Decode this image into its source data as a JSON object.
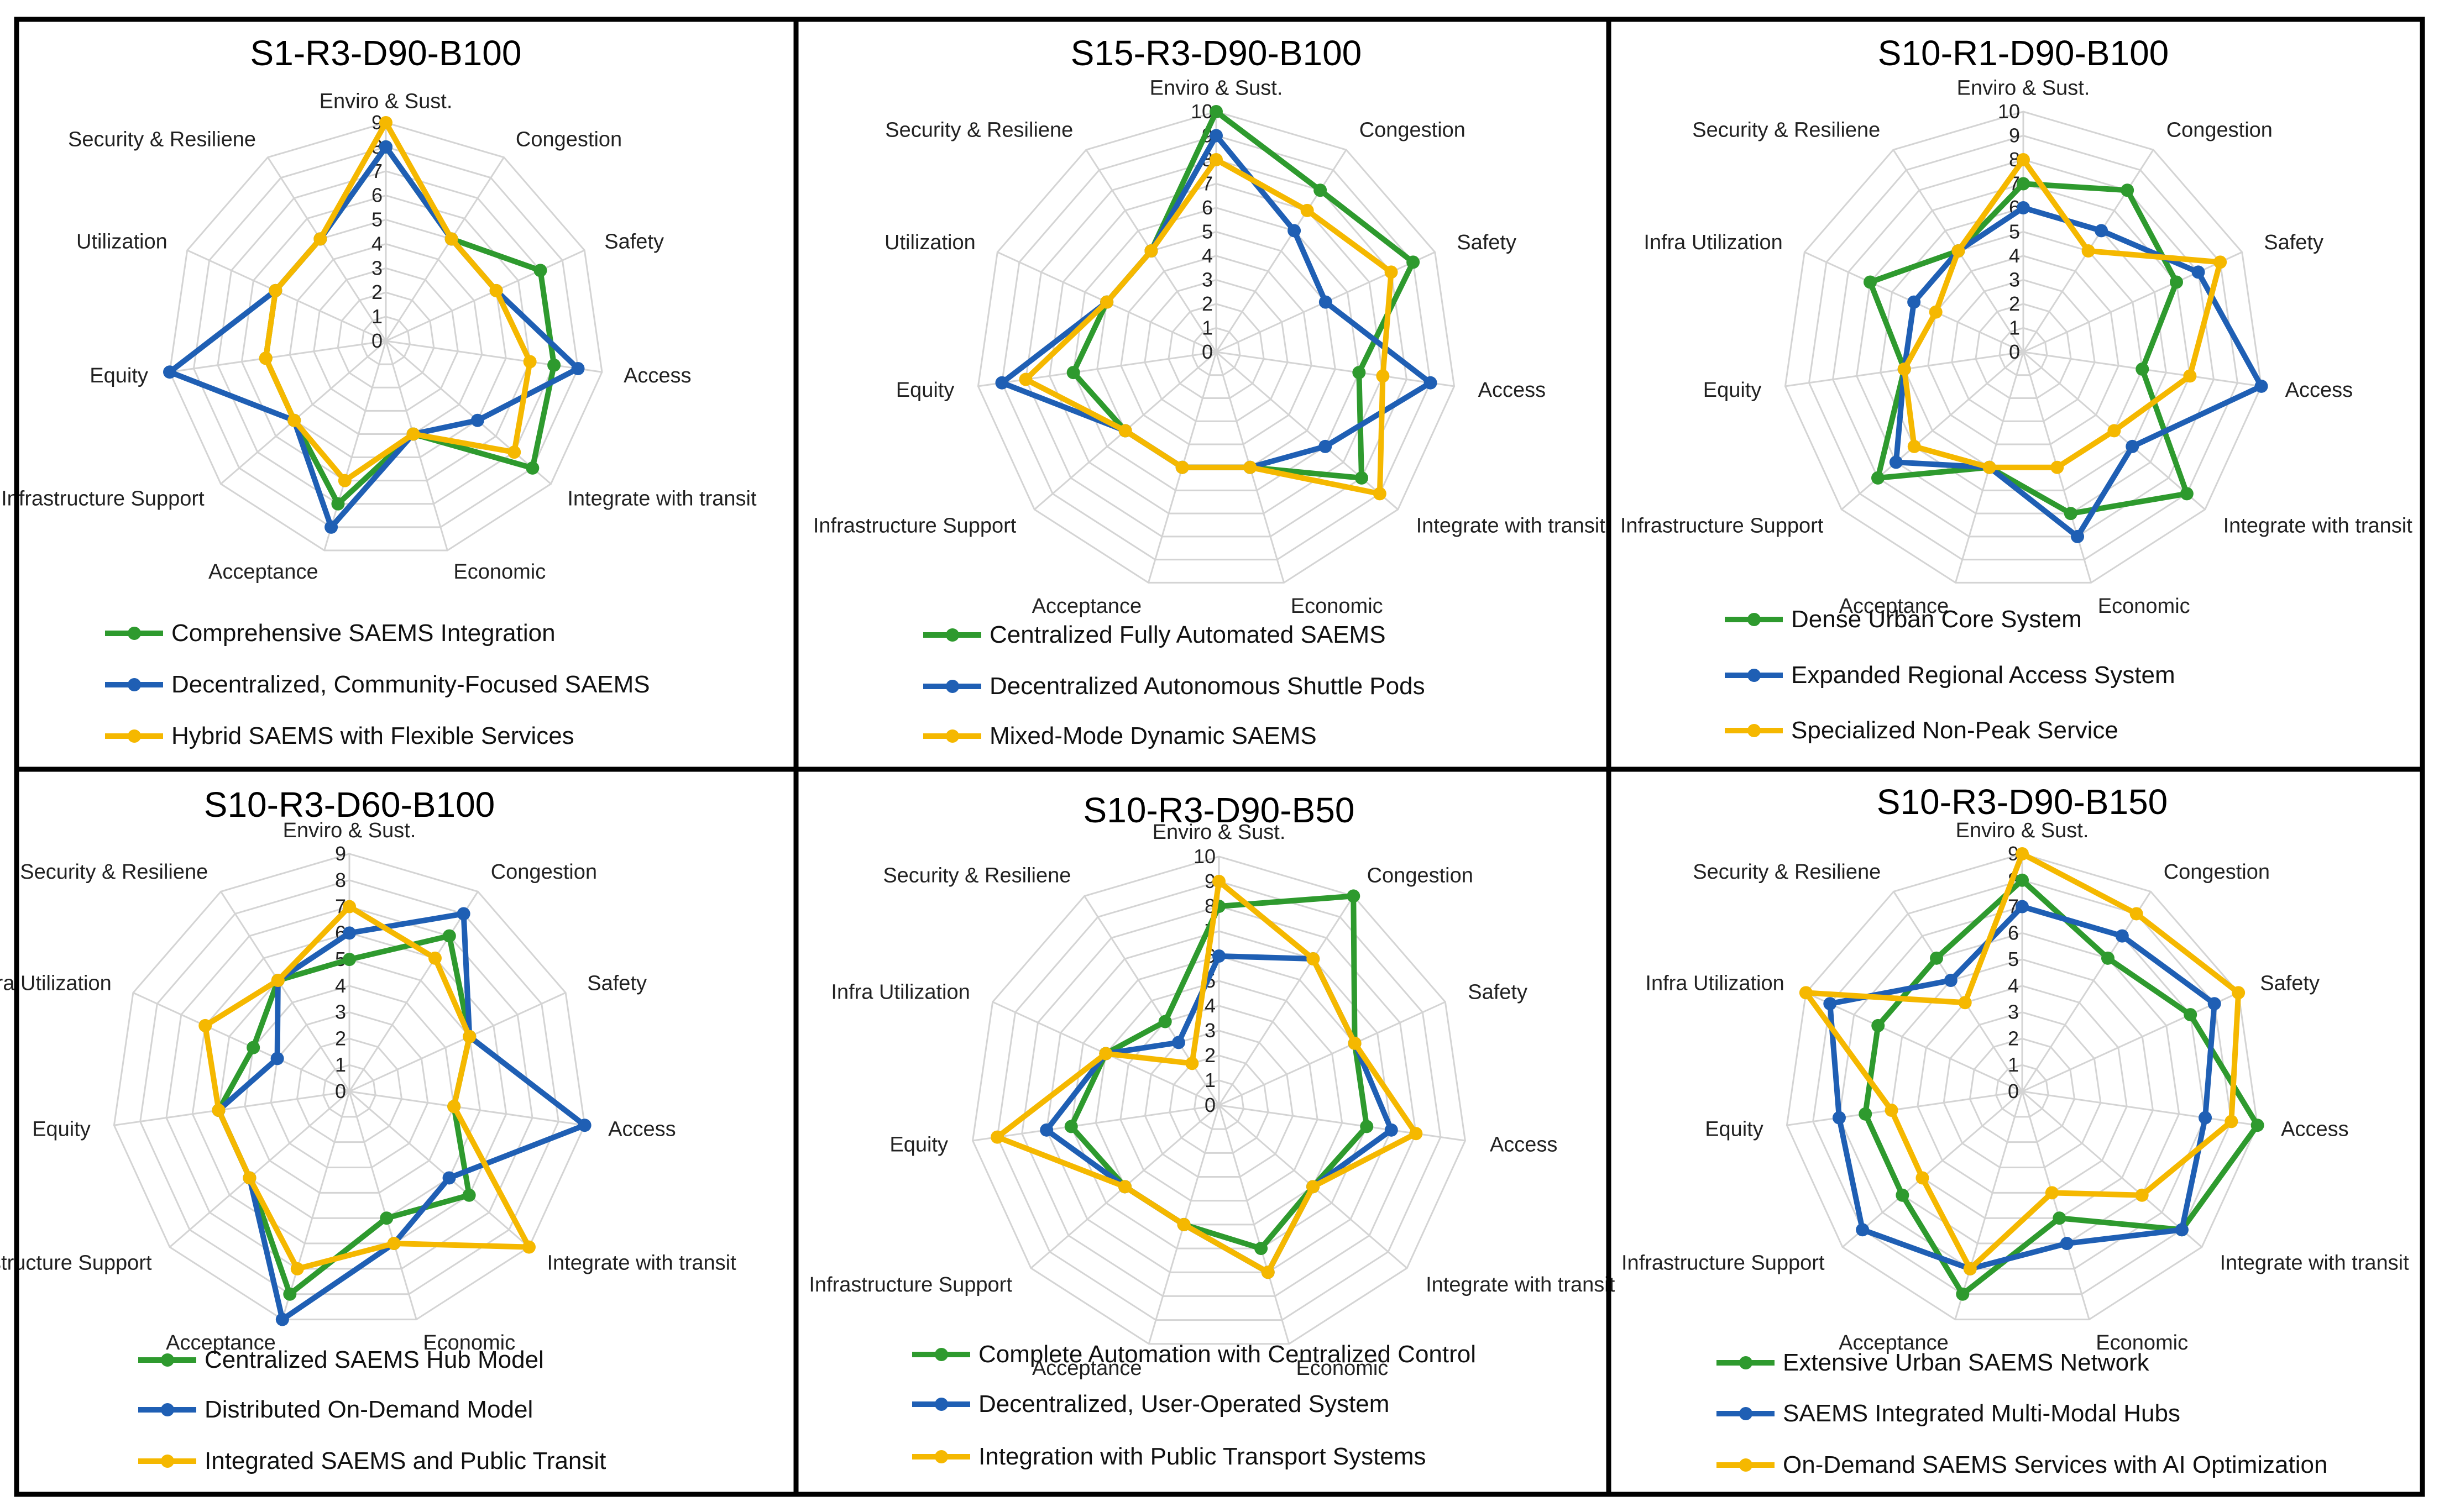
{
  "colors": {
    "green": "#2e9a2e",
    "blue": "#1f5fb4",
    "yellow": "#f5b800"
  },
  "chart_data": [
    {
      "type": "radar",
      "title": "S1-R3-D90-B100",
      "axes": [
        "Enviro & Sust.",
        "Congestion",
        "Safety",
        "Access",
        "Integrate with transit",
        "Economic",
        "Acceptance",
        "Infrastructure Support",
        "Equity",
        "Utilization",
        "Security & Resiliene"
      ],
      "rmax": 9,
      "ticks": [
        "0",
        "1",
        "2",
        "3",
        "4",
        "5",
        "6",
        "7",
        "8",
        "9"
      ],
      "series": [
        {
          "name": "Comprehensive SAEMS Integration",
          "color": "green",
          "values": [
            8,
            5,
            7,
            7,
            8,
            4,
            7,
            5,
            5,
            5,
            5
          ]
        },
        {
          "name": "Decentralized, Community-Focused SAEMS",
          "color": "blue",
          "values": [
            8,
            5,
            5,
            8,
            5,
            4,
            8,
            5,
            9,
            5,
            5
          ]
        },
        {
          "name": "Hybrid SAEMS with Flexible Services",
          "color": "yellow",
          "values": [
            9,
            5,
            5,
            6,
            7,
            4,
            6,
            5,
            5,
            5,
            5
          ]
        }
      ]
    },
    {
      "type": "radar",
      "title": "S15-R3-D90-B100",
      "axes": [
        "Enviro & Sust.",
        "Congestion",
        "Safety",
        "Access",
        "Integrate with transit",
        "Economic",
        "Acceptance",
        "Infrastructure Support",
        "Equity",
        "Utilization",
        "Security & Resiliene"
      ],
      "rmax": 10,
      "ticks": [
        "0",
        "1",
        "2",
        "3",
        "4",
        "5",
        "6",
        "7",
        "8",
        "9",
        "10"
      ],
      "series": [
        {
          "name": "Centralized Fully Automated SAEMS",
          "color": "green",
          "values": [
            10,
            8,
            9,
            6,
            8,
            5,
            5,
            5,
            6,
            5,
            5
          ]
        },
        {
          "name": "Decentralized Autonomous Shuttle Pods",
          "color": "blue",
          "values": [
            9,
            6,
            5,
            9,
            6,
            5,
            5,
            5,
            9,
            5,
            5
          ]
        },
        {
          "name": "Mixed-Mode Dynamic SAEMS",
          "color": "yellow",
          "values": [
            8,
            7,
            8,
            7,
            9,
            5,
            5,
            5,
            8,
            5,
            5
          ]
        }
      ]
    },
    {
      "type": "radar",
      "title": "S10-R1-D90-B100",
      "axes": [
        "Enviro & Sust.",
        "Congestion",
        "Safety",
        "Access",
        "Integrate with transit",
        "Economic",
        "Acceptance",
        "Infrastructure Support",
        "Equity",
        "Infra Utilization",
        "Security & Resiliene"
      ],
      "rmax": 10,
      "ticks": [
        "0",
        "1",
        "2",
        "3",
        "4",
        "5",
        "6",
        "7",
        "8",
        "9",
        "10"
      ],
      "series": [
        {
          "name": "Dense Urban Core System",
          "color": "green",
          "values": [
            7,
            8,
            7,
            5,
            9,
            7,
            5,
            8,
            5,
            7,
            5
          ]
        },
        {
          "name": "Expanded Regional Access System",
          "color": "blue",
          "values": [
            6,
            6,
            8,
            10,
            6,
            8,
            5,
            7,
            5,
            5,
            5
          ]
        },
        {
          "name": "Specialized Non-Peak Service",
          "color": "yellow",
          "values": [
            8,
            5,
            9,
            7,
            5,
            5,
            5,
            6,
            5,
            4,
            5
          ]
        }
      ]
    },
    {
      "type": "radar",
      "title": "S10-R3-D60-B100",
      "axes": [
        "Enviro & Sust.",
        "Congestion",
        "Safety",
        "Access",
        "Integrate with transit",
        "Economic",
        "Acceptance",
        "Infrastructure Support",
        "Equity",
        "Infra Utilization",
        "Security & Resiliene"
      ],
      "rmax": 9,
      "ticks": [
        "0",
        "1",
        "2",
        "3",
        "4",
        "5",
        "6",
        "7",
        "8",
        "9"
      ],
      "series": [
        {
          "name": "Centralized SAEMS Hub Model",
          "color": "green",
          "values": [
            5,
            7,
            5,
            4,
            6,
            5,
            8,
            5,
            5,
            4,
            5
          ]
        },
        {
          "name": "Distributed On-Demand Model",
          "color": "blue",
          "values": [
            6,
            8,
            5,
            9,
            5,
            6,
            9,
            5,
            5,
            3,
            5
          ]
        },
        {
          "name": "Integrated SAEMS and Public Transit",
          "color": "yellow",
          "values": [
            7,
            6,
            5,
            4,
            9,
            6,
            7,
            5,
            5,
            6,
            5
          ]
        }
      ]
    },
    {
      "type": "radar",
      "title": "S10-R3-D90-B50",
      "axes": [
        "Enviro & Sust.",
        "Congestion",
        "Safety",
        "Access",
        "Integrate with transit",
        "Economic",
        "Acceptance",
        "Infrastructure Support",
        "Equity",
        "Infra Utilization",
        "Security & Resiliene"
      ],
      "rmax": 10,
      "ticks": [
        "0",
        "1",
        "2",
        "3",
        "4",
        "5",
        "6",
        "7",
        "8",
        "9",
        "10"
      ],
      "series": [
        {
          "name": "Complete Automation with Centralized Control",
          "color": "green",
          "values": [
            8,
            10,
            6,
            6,
            5,
            6,
            5,
            5,
            6,
            5,
            4
          ]
        },
        {
          "name": "Decentralized, User-Operated System",
          "color": "blue",
          "values": [
            6,
            7,
            6,
            7,
            5,
            7,
            5,
            5,
            7,
            5,
            3
          ]
        },
        {
          "name": "Integration with Public Transport Systems",
          "color": "yellow",
          "values": [
            9,
            7,
            6,
            8,
            5,
            7,
            5,
            5,
            9,
            5,
            2
          ]
        }
      ]
    },
    {
      "type": "radar",
      "title": "S10-R3-D90-B150",
      "axes": [
        "Enviro & Sust.",
        "Congestion",
        "Safety",
        "Access",
        "Integrate with transit",
        "Economic",
        "Acceptance",
        "Infrastructure Support",
        "Equity",
        "Infra Utilization",
        "Security & Resiliene"
      ],
      "rmax": 9,
      "ticks": [
        "0",
        "1",
        "2",
        "3",
        "4",
        "5",
        "6",
        "7",
        "8",
        "9"
      ],
      "series": [
        {
          "name": "Extensive Urban SAEMS Network",
          "color": "green",
          "values": [
            8,
            6,
            7,
            9,
            8,
            5,
            8,
            6,
            6,
            6,
            6
          ]
        },
        {
          "name": "SAEMS Integrated Multi-Modal Hubs",
          "color": "blue",
          "values": [
            7,
            7,
            8,
            7,
            8,
            6,
            7,
            8,
            7,
            8,
            5
          ]
        },
        {
          "name": "On-Demand SAEMS Services with AI Optimization",
          "color": "yellow",
          "values": [
            9,
            8,
            9,
            8,
            6,
            4,
            7,
            5,
            5,
            9,
            4
          ]
        }
      ]
    }
  ]
}
